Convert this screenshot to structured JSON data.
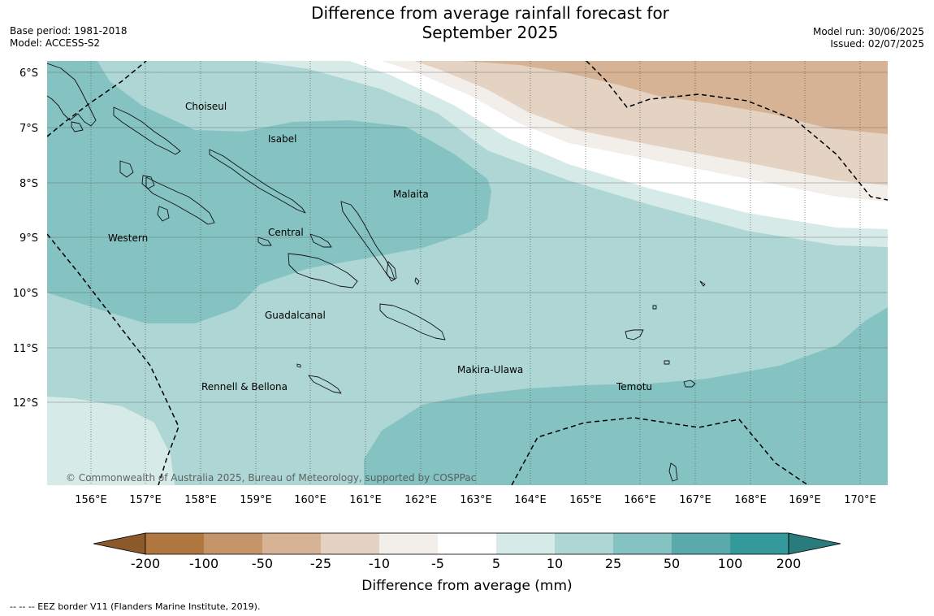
{
  "title": {
    "line1": "Difference from average rainfall forecast for",
    "line2": "September 2025"
  },
  "meta_left": {
    "base_period": "Base period: 1981-2018",
    "model": "Model: ACCESS-S2"
  },
  "meta_right": {
    "model_run": "Model run: 30/06/2025",
    "issued": "Issued: 02/07/2025"
  },
  "map": {
    "lat_labels": [
      "6°S",
      "7°S",
      "8°S",
      "9°S",
      "10°S",
      "11°S",
      "12°S"
    ],
    "lon_labels": [
      "156°E",
      "157°E",
      "158°E",
      "159°E",
      "160°E",
      "161°E",
      "162°E",
      "163°E",
      "164°E",
      "165°E",
      "166°E",
      "167°E",
      "168°E",
      "169°E",
      "170°E"
    ],
    "regions": [
      {
        "name": "Choiseul"
      },
      {
        "name": "Isabel"
      },
      {
        "name": "Malaita"
      },
      {
        "name": "Western"
      },
      {
        "name": "Central"
      },
      {
        "name": "Guadalcanal"
      },
      {
        "name": "Makira-Ulawa"
      },
      {
        "name": "Rennell & Bellona"
      },
      {
        "name": "Temotu"
      }
    ],
    "copyright": "© Commonwealth of Australia 2025, Bureau of Meteorology, supported by COSPPac"
  },
  "colorbar": {
    "ticks": [
      "-200",
      "-100",
      "-50",
      "-25",
      "-10",
      "-5",
      "5",
      "10",
      "25",
      "50",
      "100",
      "200"
    ],
    "colors": [
      "#8c5a2a",
      "#b07840",
      "#c5956a",
      "#d6b394",
      "#e4d2c2",
      "#f2eeea",
      "#ffffff",
      "#d6eae8",
      "#add6d5",
      "#85c2c2",
      "#5aaaab",
      "#33999a",
      "#2a7b7c"
    ],
    "label": "Difference from average (mm)"
  },
  "legend_note": "--  --  -- EEZ border V11 (Flanders Marine Institute, 2019)."
}
